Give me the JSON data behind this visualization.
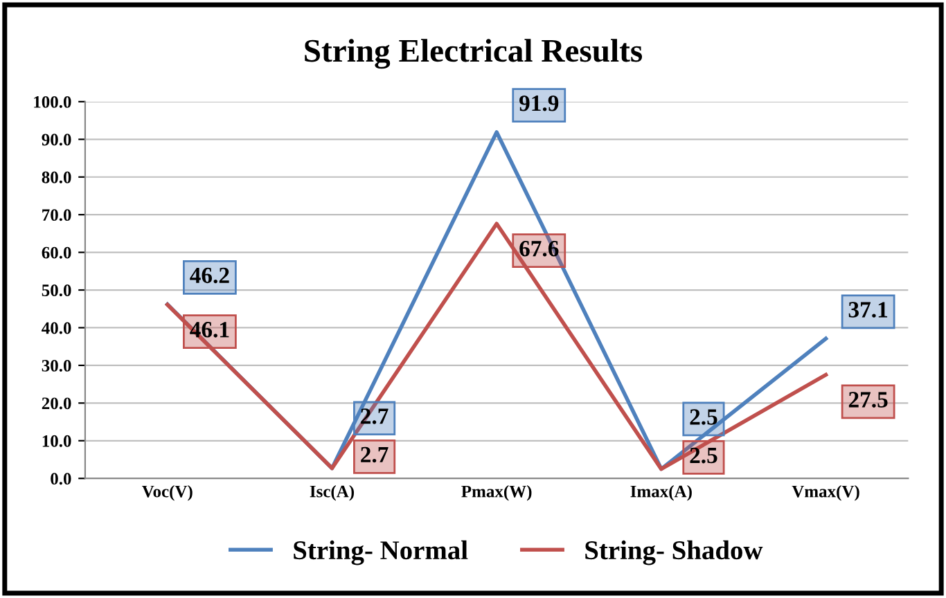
{
  "chart_data": {
    "type": "line",
    "title": "String Electrical Results",
    "categories": [
      "Voc(V)",
      "Isc(A)",
      "Pmax(W)",
      "Imax(A)",
      "Vmax(V)"
    ],
    "series": [
      {
        "name": "String- Normal",
        "color": "#4f81bd",
        "values": [
          46.2,
          2.7,
          91.9,
          2.5,
          37.1
        ]
      },
      {
        "name": "String- Shadow",
        "color": "#c0504d",
        "values": [
          46.1,
          2.7,
          67.6,
          2.5,
          27.5
        ]
      }
    ],
    "ylim": [
      0,
      100
    ],
    "yticks": [
      {
        "value": 0,
        "label": "0.0"
      },
      {
        "value": 10,
        "label": "10.0"
      },
      {
        "value": 20,
        "label": "20.0"
      },
      {
        "value": 30,
        "label": "30.0"
      },
      {
        "value": 40,
        "label": "40.0"
      },
      {
        "value": 50,
        "label": "50.0"
      },
      {
        "value": 60,
        "label": "60.0"
      },
      {
        "value": 70,
        "label": "70.0"
      },
      {
        "value": 80,
        "label": "80.0"
      },
      {
        "value": 90,
        "label": "90.0"
      },
      {
        "value": 100,
        "label": "100.0"
      }
    ],
    "grid": "y",
    "legend": "bottom",
    "data_labels": true,
    "marker": "none",
    "line_style": "solid"
  }
}
